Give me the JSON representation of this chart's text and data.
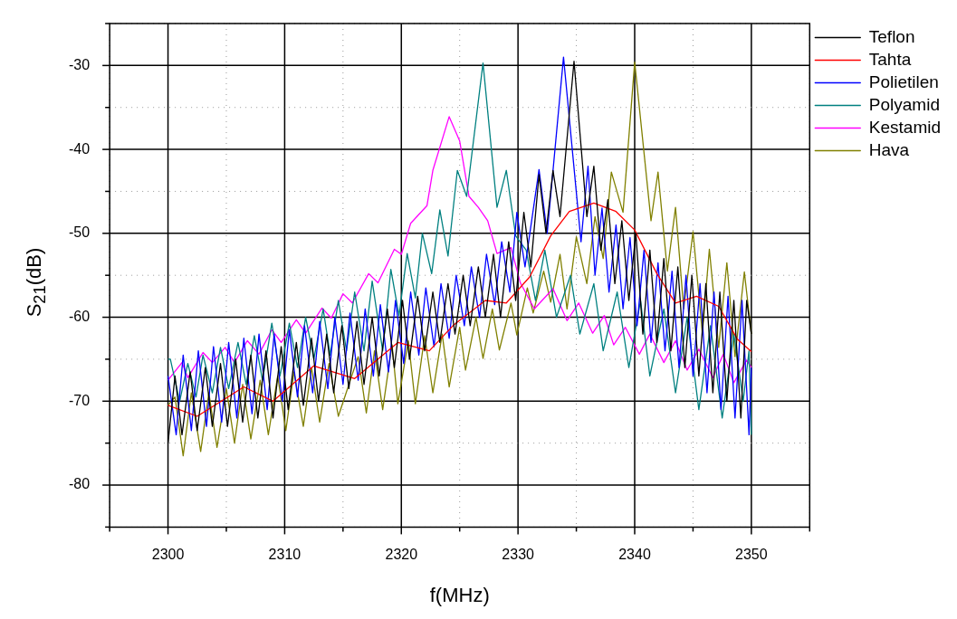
{
  "chart_data": {
    "type": "line",
    "xlabel": "f(MHz)",
    "ylabel": "S$_{21}$(dB)",
    "xlim": [
      2295,
      2355
    ],
    "ylim": [
      -85,
      -25
    ],
    "xticks": [
      {
        "value": 2295,
        "label": null
      },
      2300,
      {
        "value": 2305,
        "label": null
      },
      2310,
      {
        "value": 2315,
        "label": null
      },
      2320,
      {
        "value": 2325,
        "label": null
      },
      2330,
      {
        "value": 2335,
        "label": null
      },
      2340,
      {
        "value": 2345,
        "label": null
      },
      2350,
      {
        "value": 2355,
        "label": null
      }
    ],
    "yticks": [
      {
        "value": -85,
        "label": null
      },
      -80,
      {
        "value": -75,
        "label": null
      },
      -70,
      {
        "value": -65,
        "label": null
      },
      -60,
      {
        "value": -55,
        "label": null
      },
      -50,
      {
        "value": -45,
        "label": null
      },
      -40,
      {
        "value": -35,
        "label": null
      },
      -30,
      {
        "value": -25,
        "label": null
      }
    ],
    "grid": true,
    "legend": "right",
    "marker": "none",
    "line_style": "solid",
    "series": [
      {
        "name": "Teflon",
        "color": "#000000",
        "x": [
          2300,
          2300.6,
          2301.2,
          2301.9,
          2302.5,
          2303.2,
          2303.8,
          2304.5,
          2305.1,
          2305.8,
          2306.4,
          2307.1,
          2307.7,
          2308.4,
          2309,
          2309.7,
          2310.3,
          2311,
          2311.6,
          2312.3,
          2312.9,
          2313.6,
          2314.2,
          2314.9,
          2315.5,
          2316.2,
          2316.8,
          2317.5,
          2318.1,
          2318.8,
          2319.4,
          2320.1,
          2320.7,
          2321.4,
          2322,
          2322.7,
          2323.3,
          2324,
          2324.6,
          2325.3,
          2325.9,
          2326.6,
          2327.2,
          2327.9,
          2328.5,
          2329.2,
          2329.8,
          2330.5,
          2331.1,
          2331.8,
          2332.4,
          2333,
          2333.6,
          2334.8,
          2335.9,
          2336.5,
          2337.1,
          2337.7,
          2338.3,
          2338.9,
          2339.5,
          2340.1,
          2340.7,
          2341.3,
          2341.9,
          2342.5,
          2343.1,
          2343.7,
          2344.3,
          2344.9,
          2345.5,
          2346.1,
          2346.7,
          2347.3,
          2347.9,
          2348.5,
          2349.1,
          2349.6,
          2350
        ],
        "values": [
          -75,
          -67,
          -74,
          -66.5,
          -73.5,
          -66,
          -73,
          -65.5,
          -73,
          -65,
          -72.5,
          -64.5,
          -72,
          -64,
          -72,
          -63.5,
          -71,
          -63,
          -70.5,
          -62.5,
          -70,
          -62,
          -69,
          -61,
          -68.5,
          -60.5,
          -68,
          -60,
          -67,
          -59,
          -66,
          -58,
          -65,
          -57.5,
          -64,
          -57,
          -63,
          -56,
          -62,
          -55,
          -61,
          -54,
          -60,
          -52.5,
          -60,
          -51,
          -58,
          -47.5,
          -54,
          -43,
          -50,
          -42.5,
          -48,
          -29.5,
          -48,
          -42,
          -52,
          -46,
          -56,
          -48.5,
          -58,
          -50,
          -62,
          -52,
          -63,
          -53,
          -64,
          -54,
          -66,
          -55,
          -67,
          -56,
          -69,
          -57,
          -70,
          -58,
          -72,
          -58,
          -62
        ]
      },
      {
        "name": "Tahta",
        "color": "#ff0000",
        "x": [
          2300,
          2302.5,
          2306.5,
          2309,
          2312.5,
          2316,
          2319.7,
          2322.4,
          2324.5,
          2327.2,
          2329,
          2331,
          2332.8,
          2334.4,
          2336.5,
          2338.4,
          2340,
          2341.9,
          2343.5,
          2345.3,
          2347.2,
          2348.8,
          2350
        ],
        "values": [
          -70.5,
          -71.8,
          -68.3,
          -70,
          -65.8,
          -67.3,
          -63,
          -64,
          -60.9,
          -58,
          -58.3,
          -55.2,
          -50.3,
          -47.4,
          -46.4,
          -47.4,
          -49.6,
          -54.8,
          -58.3,
          -57.5,
          -58.7,
          -62.6,
          -64.1
        ]
      },
      {
        "name": "Polietilen",
        "color": "#0000ff",
        "x": [
          2300,
          2300.7,
          2301.3,
          2302,
          2302.6,
          2303.3,
          2303.9,
          2304.6,
          2305.2,
          2305.9,
          2306.5,
          2307.2,
          2307.8,
          2308.5,
          2309.1,
          2309.8,
          2310.4,
          2311.1,
          2311.7,
          2312.4,
          2313,
          2313.7,
          2314.3,
          2315,
          2315.6,
          2316.3,
          2316.9,
          2317.6,
          2318.2,
          2318.9,
          2319.5,
          2320.2,
          2320.8,
          2321.5,
          2322.1,
          2322.8,
          2323.4,
          2324.1,
          2324.7,
          2325.4,
          2326,
          2326.7,
          2327.3,
          2328,
          2328.6,
          2329.3,
          2329.9,
          2330.6,
          2331.8,
          2332.5,
          2333.9,
          2335.4,
          2336,
          2336.6,
          2337.2,
          2337.8,
          2338.4,
          2339,
          2339.6,
          2340.2,
          2340.8,
          2341.4,
          2342,
          2342.6,
          2343.2,
          2343.8,
          2344.4,
          2345,
          2345.6,
          2346.2,
          2346.8,
          2347.4,
          2348,
          2348.6,
          2349.2,
          2349.8,
          2350
        ],
        "values": [
          -67,
          -74,
          -64.5,
          -73.5,
          -64,
          -73,
          -63.5,
          -72.5,
          -63,
          -72,
          -62.5,
          -71.5,
          -62,
          -71,
          -62,
          -70,
          -61.5,
          -69.5,
          -61,
          -69,
          -60.5,
          -68.5,
          -60,
          -68,
          -59.5,
          -67.5,
          -59,
          -67,
          -58.5,
          -66.5,
          -58,
          -65.5,
          -57,
          -64.5,
          -56.5,
          -63.5,
          -56,
          -62.5,
          -55,
          -61,
          -54,
          -60,
          -52.5,
          -58.5,
          -51,
          -57,
          -47.5,
          -54,
          -42.4,
          -50,
          -29,
          -51,
          -42,
          -55,
          -47,
          -57,
          -49,
          -59,
          -50.5,
          -61,
          -52,
          -63,
          -53.5,
          -64,
          -54.5,
          -66,
          -55,
          -67,
          -56,
          -69,
          -57,
          -71,
          -57.5,
          -72,
          -58,
          -74,
          -66
        ]
      },
      {
        "name": "Polyamid",
        "color": "#008080",
        "x": [
          2300,
          2300.2,
          2301,
          2301.7,
          2302.4,
          2303,
          2303.8,
          2304.5,
          2305.2,
          2306,
          2306.7,
          2307.4,
          2308.1,
          2308.9,
          2309.6,
          2310.4,
          2311.1,
          2311.8,
          2312.5,
          2313.3,
          2313.9,
          2314.6,
          2315.3,
          2316,
          2316.8,
          2317.5,
          2318.4,
          2319.1,
          2319.8,
          2320.5,
          2321.2,
          2321.8,
          2322.6,
          2323.3,
          2324,
          2324.8,
          2325.6,
          2327,
          2328.2,
          2329,
          2329.8,
          2330.7,
          2331.5,
          2332.3,
          2333.3,
          2334.5,
          2335.3,
          2336.5,
          2337.3,
          2338.5,
          2339.5,
          2340.5,
          2341.3,
          2342.5,
          2343.5,
          2344.5,
          2345.5,
          2346.5,
          2347.5,
          2348.5,
          2349.3,
          2349.8,
          2350
        ],
        "values": [
          -65,
          -65,
          -70,
          -65.5,
          -69.5,
          -64.5,
          -69,
          -63.6,
          -68.5,
          -63,
          -68,
          -62.2,
          -67.5,
          -60.7,
          -67,
          -60.7,
          -66,
          -60,
          -65,
          -59,
          -64.5,
          -58,
          -64,
          -57,
          -64,
          -55.7,
          -64,
          -54.3,
          -59.8,
          -52.4,
          -57.7,
          -50,
          -54.8,
          -47.2,
          -52.7,
          -42.5,
          -45.6,
          -29.7,
          -46.9,
          -42.5,
          -50.3,
          -52,
          -58,
          -52,
          -60,
          -55,
          -62,
          -56,
          -64,
          -57,
          -66,
          -58,
          -67,
          -59,
          -69,
          -60,
          -71,
          -61,
          -72,
          -62,
          -70,
          -64,
          -74
        ]
      },
      {
        "name": "Kestamid",
        "color": "#ff00ff",
        "x": [
          2300,
          2301.2,
          2301.7,
          2303,
          2303.8,
          2304.9,
          2305.7,
          2306.8,
          2307.8,
          2308.9,
          2309.7,
          2311,
          2311.8,
          2313.2,
          2314,
          2315,
          2315.8,
          2317.2,
          2318,
          2319.4,
          2320,
          2320.8,
          2322.2,
          2322.7,
          2324.1,
          2325,
          2325.8,
          2326.6,
          2327.4,
          2328.2,
          2329.4,
          2330.2,
          2331.4,
          2333,
          2334.2,
          2335.2,
          2336.4,
          2337.4,
          2338.2,
          2339.2,
          2340.4,
          2341.3,
          2342.5,
          2343.5,
          2344.5,
          2345.5,
          2346.7,
          2347.6,
          2348.5,
          2349.6,
          2350
        ],
        "values": [
          -67.5,
          -65.4,
          -67.2,
          -64.2,
          -65.4,
          -63.6,
          -65.4,
          -62.8,
          -64.4,
          -61.5,
          -63,
          -60.3,
          -61.9,
          -58.9,
          -60.1,
          -57.2,
          -58.3,
          -54.8,
          -55.9,
          -51.9,
          -52.5,
          -48.8,
          -46.7,
          -42.5,
          -36.1,
          -39,
          -45.6,
          -46.9,
          -48.5,
          -52.4,
          -51.7,
          -55.9,
          -59,
          -56.6,
          -60.4,
          -58.3,
          -61.9,
          -59.8,
          -63.3,
          -61.2,
          -64.4,
          -62,
          -65.4,
          -62.8,
          -66.3,
          -63.8,
          -67.2,
          -64.4,
          -67.8,
          -65.1,
          -66
        ]
      },
      {
        "name": "Hava",
        "color": "#808000",
        "x": [
          2300,
          2300.6,
          2301.3,
          2302,
          2302.8,
          2303.5,
          2304.2,
          2305,
          2305.7,
          2306.4,
          2307.1,
          2307.9,
          2308.6,
          2309.4,
          2310.1,
          2310.8,
          2311.6,
          2312.3,
          2313,
          2313.8,
          2314.6,
          2316.3,
          2317,
          2317.7,
          2318.4,
          2319.2,
          2319.7,
          2320.6,
          2321.2,
          2322,
          2322.7,
          2323.5,
          2324.1,
          2325,
          2325.5,
          2326.4,
          2327,
          2327.8,
          2328.4,
          2329.4,
          2329.9,
          2330.8,
          2331.3,
          2332.2,
          2332.8,
          2333.6,
          2334.2,
          2335,
          2335.9,
          2336.6,
          2337.3,
          2338,
          2339,
          2340,
          2341.4,
          2342,
          2342.8,
          2343.5,
          2344.2,
          2345,
          2345.8,
          2346.4,
          2347.2,
          2347.9,
          2348.6,
          2349.4,
          2350
        ],
        "values": [
          -70.5,
          -69.5,
          -76.5,
          -69,
          -76,
          -69,
          -75.5,
          -68.5,
          -75,
          -68,
          -74.5,
          -67.5,
          -74,
          -67,
          -73.5,
          -66.5,
          -73,
          -66,
          -72.5,
          -65.5,
          -71.8,
          -64.7,
          -71.4,
          -64,
          -71,
          -63.3,
          -70.3,
          -62.8,
          -70.3,
          -62.2,
          -69,
          -62,
          -68.3,
          -61.2,
          -66.3,
          -60,
          -64.9,
          -59,
          -63.9,
          -58.3,
          -62.1,
          -56.5,
          -59.5,
          -54.5,
          -58.2,
          -52.5,
          -59,
          -50.4,
          -56,
          -48,
          -53,
          -42.7,
          -47.5,
          -29.6,
          -48.5,
          -42.7,
          -54.5,
          -46.9,
          -59,
          -49.8,
          -61.9,
          -51.9,
          -63.6,
          -53.5,
          -64.7,
          -54.6,
          -62
        ]
      }
    ]
  }
}
